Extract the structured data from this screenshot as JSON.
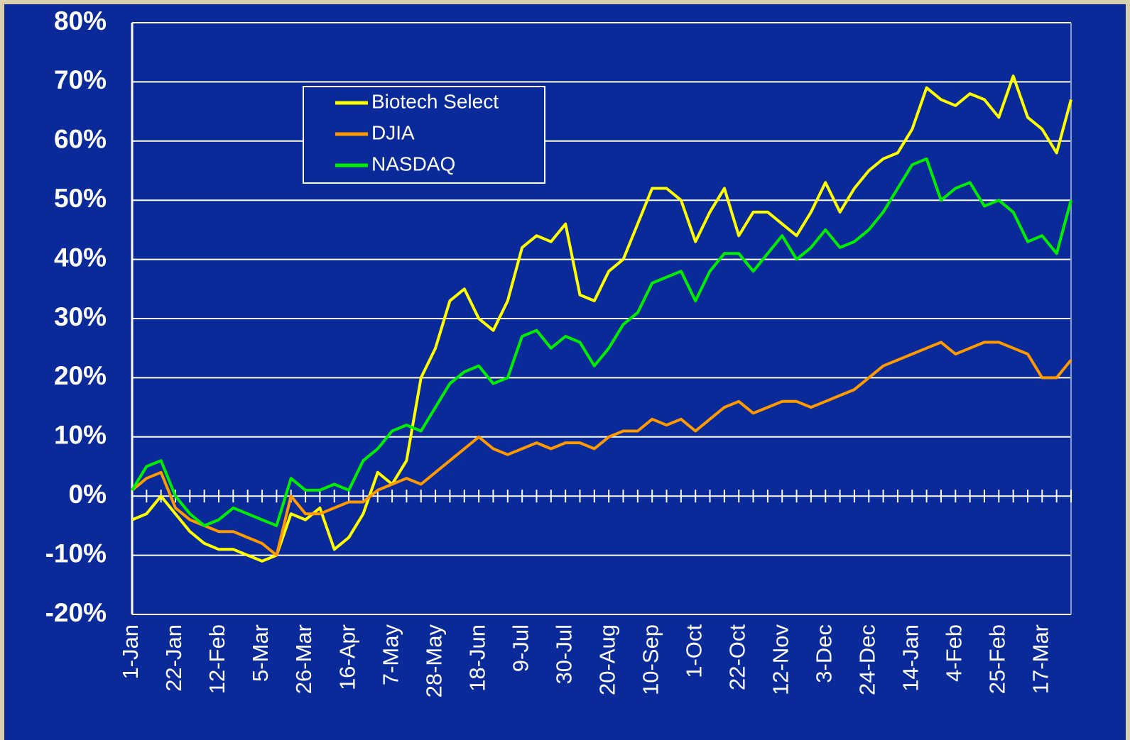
{
  "chart_data": {
    "type": "line",
    "categories": [
      "1-Jan",
      null,
      null,
      "22-Jan",
      null,
      null,
      "12-Feb",
      null,
      null,
      "5-Mar",
      null,
      null,
      "26-Mar",
      null,
      null,
      "16-Apr",
      null,
      null,
      "7-May",
      null,
      null,
      "28-May",
      null,
      null,
      "18-Jun",
      null,
      null,
      "9-Jul",
      null,
      null,
      "30-Jul",
      null,
      null,
      "20-Aug",
      null,
      null,
      "10-Sep",
      null,
      null,
      "1-Oct",
      null,
      null,
      "22-Oct",
      null,
      null,
      "12-Nov",
      null,
      null,
      "3-Dec",
      null,
      null,
      "24-Dec",
      null,
      null,
      "14-Jan",
      null,
      null,
      "4-Feb",
      null,
      null,
      "25-Feb",
      null,
      null,
      "17-Mar",
      null,
      null
    ],
    "series": [
      {
        "name": "Biotech Select",
        "color": "#ffff00",
        "values": [
          -4,
          -3,
          0,
          -3,
          -6,
          -8,
          -9,
          -9,
          -10,
          -11,
          -10,
          -3,
          -4,
          -2,
          -9,
          -7,
          -3,
          4,
          2,
          6,
          20,
          25,
          33,
          35,
          30,
          28,
          33,
          42,
          44,
          43,
          46,
          34,
          33,
          38,
          40,
          46,
          52,
          52,
          50,
          43,
          48,
          52,
          44,
          48,
          48,
          46,
          44,
          48,
          53,
          48,
          52,
          55,
          57,
          58,
          62,
          69,
          67,
          66,
          68,
          67,
          64,
          71,
          64,
          62,
          58,
          67
        ]
      },
      {
        "name": "DJIA",
        "color": "#ff9900",
        "values": [
          1,
          3,
          4,
          -2,
          -4,
          -5,
          -6,
          -6,
          -7,
          -8,
          -10,
          0,
          -3,
          -3,
          -2,
          -1,
          -1,
          1,
          2,
          3,
          2,
          4,
          6,
          8,
          10,
          8,
          7,
          8,
          9,
          8,
          9,
          9,
          8,
          10,
          11,
          11,
          13,
          12,
          13,
          11,
          13,
          15,
          16,
          14,
          15,
          16,
          16,
          15,
          16,
          17,
          18,
          20,
          22,
          23,
          24,
          25,
          26,
          24,
          25,
          26,
          26,
          25,
          24,
          20,
          20,
          23
        ]
      },
      {
        "name": "NASDAQ",
        "color": "#00ee00",
        "values": [
          1,
          5,
          6,
          0,
          -3,
          -5,
          -4,
          -2,
          -3,
          -4,
          -5,
          3,
          1,
          1,
          2,
          1,
          6,
          8,
          11,
          12,
          11,
          15,
          19,
          21,
          22,
          19,
          20,
          27,
          28,
          25,
          27,
          26,
          22,
          25,
          29,
          31,
          36,
          37,
          38,
          33,
          38,
          41,
          41,
          38,
          41,
          44,
          40,
          42,
          45,
          42,
          43,
          45,
          48,
          52,
          56,
          57,
          50,
          52,
          53,
          49,
          50,
          48,
          43,
          44,
          41,
          50
        ]
      }
    ],
    "ylim": [
      -20,
      80
    ],
    "yticks": [
      {
        "value": -20,
        "label": "-20%"
      },
      {
        "value": -10,
        "label": "-10%"
      },
      {
        "value": 0,
        "label": "0%"
      },
      {
        "value": 10,
        "label": "10%"
      },
      {
        "value": 20,
        "label": "20%"
      },
      {
        "value": 30,
        "label": "30%"
      },
      {
        "value": 40,
        "label": "40%"
      },
      {
        "value": 50,
        "label": "50%"
      },
      {
        "value": 60,
        "label": "60%"
      },
      {
        "value": 70,
        "label": "70%"
      },
      {
        "value": 80,
        "label": "80%"
      }
    ],
    "grid": true,
    "legend": "upper left"
  }
}
